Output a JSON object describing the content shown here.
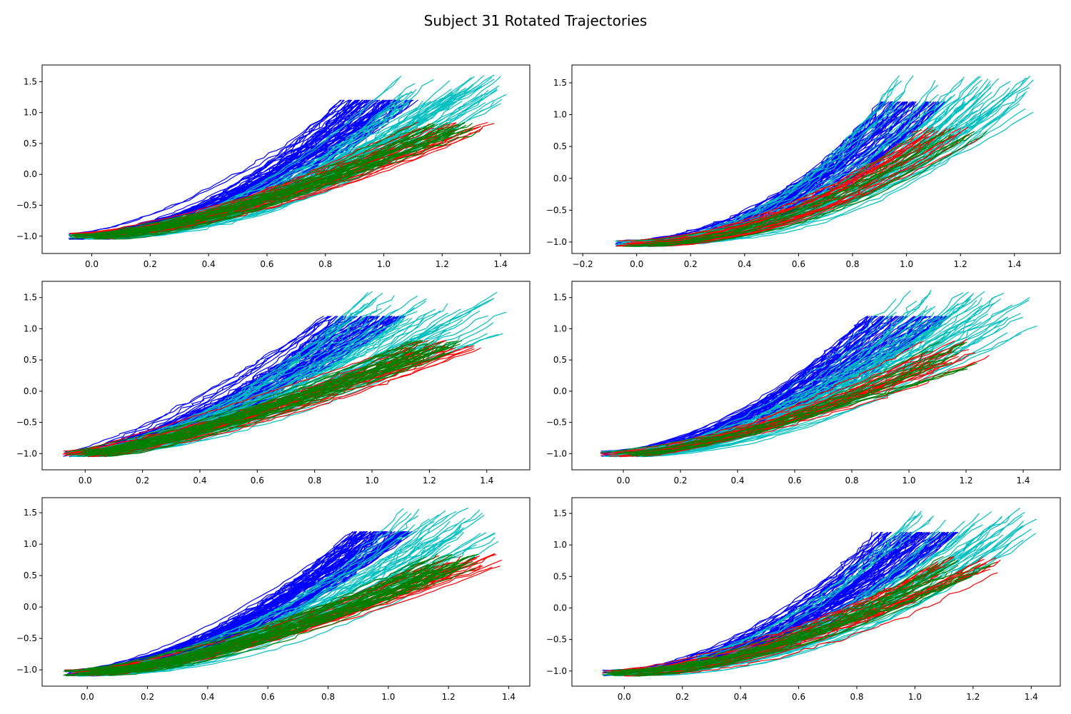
{
  "figure": {
    "suptitle": "Subject 31 Rotated Trajectories"
  },
  "colors": {
    "blue": "#0000ff",
    "cyan": "#00bfbf",
    "red": "#ff0000",
    "green": "#008000"
  },
  "chart_data": [
    {
      "type": "line",
      "title": "",
      "xlabel": "",
      "ylabel": "",
      "grid": false,
      "xlim": [
        -0.17,
        1.5
      ],
      "ylim": [
        -1.28,
        1.77
      ],
      "xticks": [
        0.0,
        0.2,
        0.4,
        0.6,
        0.8,
        1.0,
        1.2,
        1.4
      ],
      "yticks": [
        -1.0,
        -0.5,
        0.0,
        0.5,
        1.0,
        1.5
      ],
      "series": [
        {
          "color": "blue",
          "count": 70,
          "start": [
            0.0,
            -1.0
          ],
          "end_x": [
            0.85,
            1.12
          ],
          "end_y": [
            1.2,
            1.2
          ],
          "curv": 1.8
        },
        {
          "color": "cyan",
          "count": 55,
          "start": [
            0.0,
            -1.0
          ],
          "end_x": [
            1.05,
            1.42
          ],
          "end_y": [
            1.1,
            1.62
          ],
          "curv": 1.9
        },
        {
          "color": "red",
          "count": 22,
          "start": [
            0.0,
            -1.0
          ],
          "end_x": [
            1.1,
            1.38
          ],
          "end_y": [
            0.6,
            0.85
          ],
          "curv": 1.5
        },
        {
          "color": "green",
          "count": 28,
          "start": [
            0.0,
            -1.0
          ],
          "end_x": [
            1.1,
            1.32
          ],
          "end_y": [
            0.65,
            0.85
          ],
          "curv": 1.55
        }
      ]
    },
    {
      "type": "line",
      "title": "",
      "xlabel": "",
      "ylabel": "",
      "grid": false,
      "xlim": [
        -0.24,
        1.57
      ],
      "ylim": [
        -1.18,
        1.78
      ],
      "xticks": [
        -0.2,
        0.0,
        0.2,
        0.4,
        0.6,
        0.8,
        1.0,
        1.2,
        1.4
      ],
      "yticks": [
        -1.0,
        -0.5,
        0.0,
        0.5,
        1.0,
        1.5
      ],
      "series": [
        {
          "color": "blue",
          "count": 70,
          "start": [
            0.0,
            -1.02
          ],
          "end_x": [
            0.9,
            1.15
          ],
          "end_y": [
            1.2,
            1.2
          ],
          "curv": 2.1
        },
        {
          "color": "cyan",
          "count": 60,
          "start": [
            0.0,
            -1.02
          ],
          "end_x": [
            0.95,
            1.48
          ],
          "end_y": [
            1.0,
            1.62
          ],
          "curv": 2.2
        },
        {
          "color": "red",
          "count": 22,
          "start": [
            0.0,
            -1.02
          ],
          "end_x": [
            1.05,
            1.28
          ],
          "end_y": [
            0.65,
            0.82
          ],
          "curv": 1.9
        },
        {
          "color": "green",
          "count": 12,
          "start": [
            0.0,
            -1.02
          ],
          "end_x": [
            1.05,
            1.3
          ],
          "end_y": [
            0.65,
            0.8
          ],
          "curv": 1.9
        }
      ]
    },
    {
      "type": "line",
      "title": "",
      "xlabel": "",
      "ylabel": "",
      "grid": false,
      "xlim": [
        -0.15,
        1.55
      ],
      "ylim": [
        -1.26,
        1.76
      ],
      "xticks": [
        0.0,
        0.2,
        0.4,
        0.6,
        0.8,
        1.0,
        1.2,
        1.4
      ],
      "yticks": [
        -1.0,
        -0.5,
        0.0,
        0.5,
        1.0,
        1.5
      ],
      "series": [
        {
          "color": "blue",
          "count": 70,
          "start": [
            0.0,
            -1.0
          ],
          "end_x": [
            0.82,
            1.12
          ],
          "end_y": [
            1.2,
            1.2
          ],
          "curv": 1.5
        },
        {
          "color": "cyan",
          "count": 55,
          "start": [
            0.0,
            -1.0
          ],
          "end_x": [
            0.95,
            1.47
          ],
          "end_y": [
            0.9,
            1.6
          ],
          "curv": 1.6
        },
        {
          "color": "red",
          "count": 22,
          "start": [
            0.0,
            -1.0
          ],
          "end_x": [
            1.15,
            1.38
          ],
          "end_y": [
            0.6,
            0.82
          ],
          "curv": 1.25
        },
        {
          "color": "green",
          "count": 30,
          "start": [
            0.0,
            -1.0
          ],
          "end_x": [
            1.1,
            1.32
          ],
          "end_y": [
            0.6,
            0.82
          ],
          "curv": 1.3
        }
      ]
    },
    {
      "type": "line",
      "title": "",
      "xlabel": "",
      "ylabel": "",
      "grid": false,
      "xlim": [
        -0.18,
        1.53
      ],
      "ylim": [
        -1.26,
        1.76
      ],
      "xticks": [
        0.0,
        0.2,
        0.4,
        0.6,
        0.8,
        1.0,
        1.2,
        1.4
      ],
      "yticks": [
        -1.0,
        -0.5,
        0.0,
        0.5,
        1.0,
        1.5
      ],
      "series": [
        {
          "color": "blue",
          "count": 70,
          "start": [
            0.0,
            -1.0
          ],
          "end_x": [
            0.85,
            1.15
          ],
          "end_y": [
            1.2,
            1.2
          ],
          "curv": 1.7
        },
        {
          "color": "cyan",
          "count": 55,
          "start": [
            0.0,
            -1.0
          ],
          "end_x": [
            0.95,
            1.45
          ],
          "end_y": [
            0.9,
            1.62
          ],
          "curv": 1.8
        },
        {
          "color": "red",
          "count": 22,
          "start": [
            0.0,
            -1.0
          ],
          "end_x": [
            1.05,
            1.28
          ],
          "end_y": [
            0.3,
            0.85
          ],
          "curv": 1.5
        },
        {
          "color": "green",
          "count": 12,
          "start": [
            0.0,
            -1.0
          ],
          "end_x": [
            1.05,
            1.25
          ],
          "end_y": [
            0.35,
            0.8
          ],
          "curv": 1.5
        }
      ]
    },
    {
      "type": "line",
      "title": "",
      "xlabel": "",
      "ylabel": "",
      "grid": false,
      "xlim": [
        -0.15,
        1.47
      ],
      "ylim": [
        -1.26,
        1.74
      ],
      "xticks": [
        0.0,
        0.2,
        0.4,
        0.6,
        0.8,
        1.0,
        1.2,
        1.4
      ],
      "yticks": [
        -1.0,
        -0.5,
        0.0,
        0.5,
        1.0,
        1.5
      ],
      "series": [
        {
          "color": "blue",
          "count": 75,
          "start": [
            0.0,
            -1.05
          ],
          "end_x": [
            0.88,
            1.1
          ],
          "end_y": [
            1.2,
            1.2
          ],
          "curv": 1.7
        },
        {
          "color": "cyan",
          "count": 40,
          "start": [
            0.0,
            -1.05
          ],
          "end_x": [
            1.05,
            1.37
          ],
          "end_y": [
            0.9,
            1.6
          ],
          "curv": 1.8
        },
        {
          "color": "red",
          "count": 22,
          "start": [
            0.0,
            -1.05
          ],
          "end_x": [
            1.15,
            1.38
          ],
          "end_y": [
            0.6,
            0.85
          ],
          "curv": 1.45
        },
        {
          "color": "green",
          "count": 35,
          "start": [
            0.0,
            -1.05
          ],
          "end_x": [
            1.12,
            1.3
          ],
          "end_y": [
            0.6,
            0.85
          ],
          "curv": 1.5
        }
      ]
    },
    {
      "type": "line",
      "title": "",
      "xlabel": "",
      "ylabel": "",
      "grid": false,
      "xlim": [
        -0.18,
        1.5
      ],
      "ylim": [
        -1.24,
        1.75
      ],
      "xticks": [
        0.0,
        0.2,
        0.4,
        0.6,
        0.8,
        1.0,
        1.2,
        1.4
      ],
      "yticks": [
        -1.0,
        -0.5,
        0.0,
        0.5,
        1.0,
        1.5
      ],
      "series": [
        {
          "color": "blue",
          "count": 75,
          "start": [
            0.0,
            -1.03
          ],
          "end_x": [
            0.85,
            1.15
          ],
          "end_y": [
            1.2,
            1.2
          ],
          "curv": 1.9
        },
        {
          "color": "cyan",
          "count": 45,
          "start": [
            0.0,
            -1.03
          ],
          "end_x": [
            1.0,
            1.42
          ],
          "end_y": [
            1.0,
            1.6
          ],
          "curv": 2.0
        },
        {
          "color": "red",
          "count": 22,
          "start": [
            0.0,
            -1.03
          ],
          "end_x": [
            1.05,
            1.3
          ],
          "end_y": [
            0.5,
            0.82
          ],
          "curv": 1.7
        },
        {
          "color": "green",
          "count": 20,
          "start": [
            0.0,
            -1.03
          ],
          "end_x": [
            1.05,
            1.28
          ],
          "end_y": [
            0.45,
            0.82
          ],
          "curv": 1.7
        }
      ]
    }
  ]
}
